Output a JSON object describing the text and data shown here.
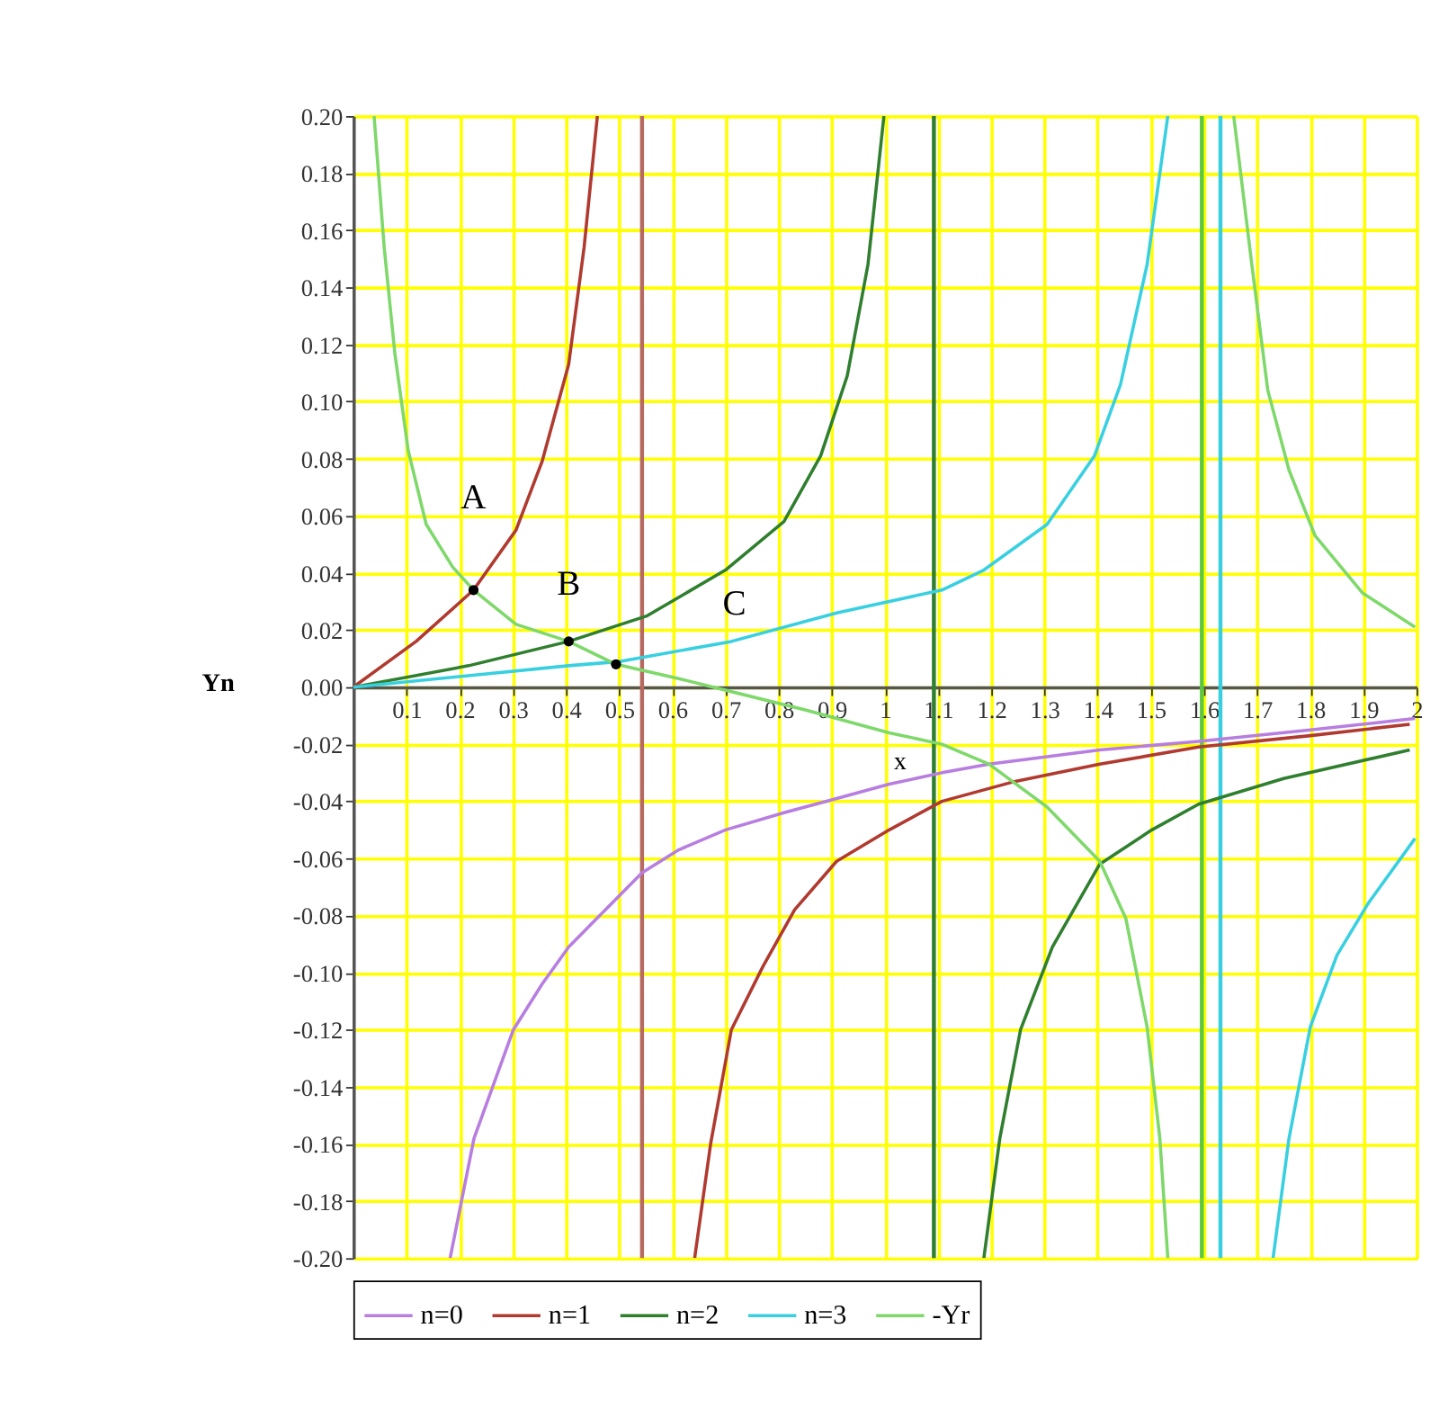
{
  "chart_data": {
    "type": "line",
    "xlabel": "x",
    "ylabel": "Yn",
    "xlim": [
      0,
      2
    ],
    "ylim": [
      -0.2,
      0.2
    ],
    "xticks": [
      0.1,
      0.2,
      0.3,
      0.4,
      0.5,
      0.6,
      0.7,
      0.8,
      0.9,
      1,
      1.1,
      1.2,
      1.3,
      1.4,
      1.5,
      1.6,
      1.7,
      1.8,
      1.9,
      2
    ],
    "yticks": [
      {
        "value": -0.2,
        "label": "-0.20"
      },
      {
        "value": -0.18,
        "label": "-0.18"
      },
      {
        "value": -0.16,
        "label": "-0.16"
      },
      {
        "value": -0.14,
        "label": "-0.14"
      },
      {
        "value": -0.12,
        "label": "-0.12"
      },
      {
        "value": -0.1,
        "label": "-0.10"
      },
      {
        "value": -0.08,
        "label": "-0.08"
      },
      {
        "value": -0.06,
        "label": "-0.06"
      },
      {
        "value": -0.04,
        "label": "-0.04"
      },
      {
        "value": -0.02,
        "label": "-0.02"
      },
      {
        "value": 0,
        "label": "0.00"
      },
      {
        "value": 0.02,
        "label": "0.02"
      },
      {
        "value": 0.04,
        "label": "0.04"
      },
      {
        "value": 0.06,
        "label": "0.06"
      },
      {
        "value": 0.08,
        "label": "0.08"
      },
      {
        "value": 0.1,
        "label": "0.10"
      },
      {
        "value": 0.12,
        "label": "0.12"
      },
      {
        "value": 0.14,
        "label": "0.14"
      },
      {
        "value": 0.16,
        "label": "0.16"
      },
      {
        "value": 0.18,
        "label": "0.18"
      },
      {
        "value": 0.2,
        "label": "0.20"
      }
    ],
    "grid": true,
    "legend": "bottom",
    "line_style": "solid",
    "series": [
      {
        "name": "n=0",
        "color": "#b77ee0",
        "x": [
          0.182,
          0.227,
          0.301,
          0.355,
          0.405,
          0.474,
          0.543,
          0.612,
          0.7,
          0.81,
          0.909,
          1.008,
          1.107,
          1.196,
          1.404,
          1.59,
          1.8,
          1.997
        ],
        "values": [
          -0.2,
          -0.158,
          -0.12,
          -0.104,
          -0.091,
          -0.078,
          -0.065,
          -0.057,
          -0.05,
          -0.044,
          -0.039,
          -0.034,
          -0.03,
          -0.027,
          -0.022,
          -0.019,
          -0.015,
          -0.011
        ]
      },
      {
        "name": "n=1",
        "color": "#b03a30",
        "x": [
          0,
          0.118,
          0.226,
          0.306,
          0.355,
          0.405,
          0.434,
          0.459,
          0.543,
          0.642,
          0.672,
          0.711,
          0.77,
          0.83,
          0.909,
          1.008,
          1.107,
          1.245,
          1.404,
          1.59,
          1.8,
          1.987
        ],
        "values": [
          0,
          0.016,
          0.034,
          0.055,
          0.079,
          0.113,
          0.154,
          0.2,
          null,
          -0.2,
          -0.16,
          -0.12,
          -0.098,
          -0.078,
          -0.061,
          -0.05,
          -0.04,
          -0.033,
          -0.027,
          -0.021,
          -0.017,
          -0.013
        ]
      },
      {
        "name": "n=2",
        "color": "#2f7f2f",
        "x": [
          0,
          0.217,
          0.405,
          0.553,
          0.7,
          0.81,
          0.879,
          0.929,
          0.968,
          0.998,
          1.092,
          1.186,
          1.216,
          1.255,
          1.315,
          1.404,
          1.502,
          1.59,
          1.75,
          1.987
        ],
        "values": [
          0,
          0.0075,
          0.016,
          0.025,
          0.041,
          0.058,
          0.081,
          0.109,
          0.148,
          0.2,
          null,
          -0.2,
          -0.158,
          -0.12,
          -0.091,
          -0.062,
          -0.05,
          -0.041,
          -0.032,
          -0.022
        ]
      },
      {
        "name": "n=3",
        "color": "#38d0e0",
        "x": [
          0,
          0.405,
          0.503,
          0.711,
          0.909,
          1.107,
          1.186,
          1.305,
          1.394,
          1.443,
          1.493,
          1.532,
          1.631,
          1.73,
          1.76,
          1.8,
          1.85,
          1.908,
          1.997
        ],
        "values": [
          0,
          0.0075,
          0.009,
          0.016,
          0.026,
          0.034,
          0.041,
          0.057,
          0.081,
          0.106,
          0.148,
          0.2,
          null,
          -0.2,
          -0.158,
          -0.119,
          -0.094,
          -0.076,
          -0.053
        ]
      },
      {
        "name": "-Yr",
        "color": "#7ed86a",
        "x": [
          0.039,
          0.058,
          0.078,
          0.103,
          0.137,
          0.187,
          0.226,
          0.306,
          0.405,
          0.494,
          0.612,
          0.677,
          0.85,
          1.008,
          1.107,
          1.196,
          1.305,
          1.404,
          1.453,
          1.493,
          1.517,
          1.532,
          1.596,
          1.656,
          1.69,
          1.72,
          1.76,
          1.809,
          1.898,
          1.997
        ],
        "values": [
          0.2,
          0.154,
          0.117,
          0.083,
          0.057,
          0.042,
          0.034,
          0.022,
          0.016,
          0.008,
          0.003,
          0,
          -0.008,
          -0.016,
          -0.02,
          -0.027,
          -0.042,
          -0.061,
          -0.081,
          -0.119,
          -0.158,
          -0.2,
          null,
          0.2,
          0.148,
          0.104,
          0.076,
          0.053,
          0.033,
          0.021
        ]
      },
      {
        "type": "scatter",
        "color": "#000000",
        "marker": "circle",
        "x": [
          0.226,
          0.405,
          0.494
        ],
        "values": [
          0.034,
          0.016,
          0.008
        ]
      }
    ],
    "ref_lines": [
      {
        "axis": "x",
        "value": 0.543,
        "color": "#b86a60",
        "line_style": "solid"
      },
      {
        "axis": "x",
        "value": 1.092,
        "color": "#2f7f2f",
        "line_style": "solid"
      },
      {
        "axis": "x",
        "value": 1.596,
        "color": "#5cc840",
        "line_style": "solid"
      },
      {
        "axis": "x",
        "value": 1.631,
        "color": "#38d0e0",
        "line_style": "solid"
      }
    ],
    "annotations": [
      "A",
      "B",
      "C"
    ]
  }
}
